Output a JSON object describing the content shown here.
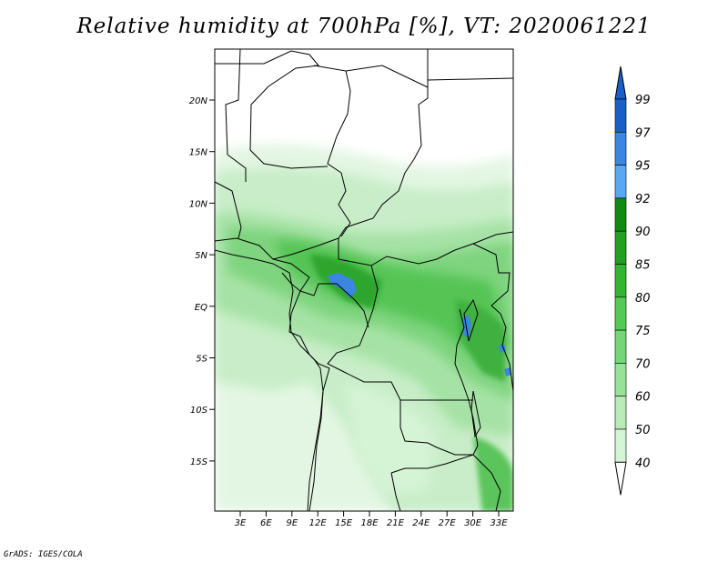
{
  "title": "Relative humidity at 700hPa [%], VT: 2020061221",
  "credit": "GrADS: IGES/COLA",
  "lon_ticks": [
    "3E",
    "6E",
    "9E",
    "12E",
    "15E",
    "18E",
    "21E",
    "24E",
    "27E",
    "30E",
    "33E"
  ],
  "lat_ticks": [
    "20N",
    "15N",
    "10N",
    "5N",
    "EQ",
    "5S",
    "10S",
    "15S"
  ],
  "colorbar": {
    "labels": [
      "99",
      "97",
      "95",
      "92",
      "90",
      "85",
      "80",
      "75",
      "70",
      "60",
      "50",
      "40"
    ],
    "colors": [
      "#1a5fc8",
      "#3a86e0",
      "#5aa8f0",
      "#118a11",
      "#22a022",
      "#33b533",
      "#55c955",
      "#77d577",
      "#99e199",
      "#b9ebb9",
      "#d5f3d5",
      "#ecfbec"
    ],
    "triangle_top": "#1a5fc8",
    "triangle_bottom": "#ffffff"
  },
  "colors": {
    "background": "#ffffff",
    "border": "#000000"
  }
}
